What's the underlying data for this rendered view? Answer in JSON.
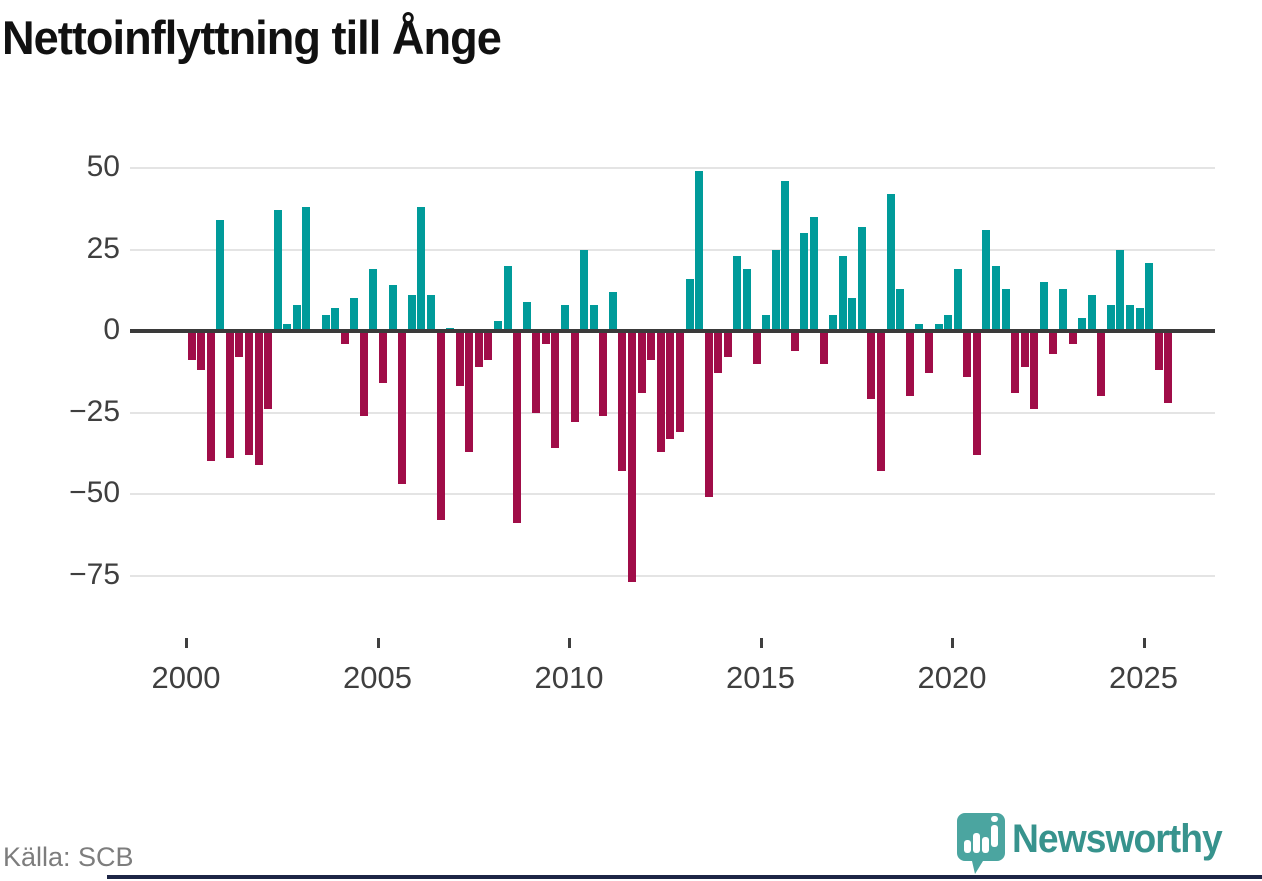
{
  "title": "Nettoinflyttning till Ånge",
  "source": "Källa: SCB",
  "branding": {
    "wordmark": "Newsworthy"
  },
  "colors": {
    "positive": "#009b9a",
    "negative": "#a00d48",
    "grid": "#e4e4e4",
    "zero_line": "#3a3a3a",
    "axis_text": "#3f3f3f",
    "title_text": "#111111",
    "source_text": "#7d7d7d",
    "logo_icon": "#4ba5a0",
    "logo_text": "#37938d",
    "footer_bar": "#1d2545"
  },
  "chart_data": {
    "type": "bar",
    "title": "Nettoinflyttning till Ånge",
    "x_unit": "quarter",
    "ylim": [
      -85,
      55
    ],
    "yticks": [
      50,
      25,
      0,
      -25,
      -50,
      -75
    ],
    "ytick_labels": [
      "50",
      "25",
      "0",
      "−25",
      "−50",
      "−75"
    ],
    "xticks": [
      "2000",
      "2005",
      "2010",
      "2015",
      "2020",
      "2025"
    ],
    "grid": true,
    "legend": "none",
    "categories": [
      "2000Q1",
      "2000Q2",
      "2000Q3",
      "2000Q4",
      "2001Q1",
      "2001Q2",
      "2001Q3",
      "2001Q4",
      "2002Q1",
      "2002Q2",
      "2002Q3",
      "2002Q4",
      "2003Q1",
      "2003Q2",
      "2003Q3",
      "2003Q4",
      "2004Q1",
      "2004Q2",
      "2004Q3",
      "2004Q4",
      "2005Q1",
      "2005Q2",
      "2005Q3",
      "2005Q4",
      "2006Q1",
      "2006Q2",
      "2006Q3",
      "2006Q4",
      "2007Q1",
      "2007Q2",
      "2007Q3",
      "2007Q4",
      "2008Q1",
      "2008Q2",
      "2008Q3",
      "2008Q4",
      "2009Q1",
      "2009Q2",
      "2009Q3",
      "2009Q4",
      "2010Q1",
      "2010Q2",
      "2010Q3",
      "2010Q4",
      "2011Q1",
      "2011Q2",
      "2011Q3",
      "2011Q4",
      "2012Q1",
      "2012Q2",
      "2012Q3",
      "2012Q4",
      "2013Q1",
      "2013Q2",
      "2013Q3",
      "2013Q4",
      "2014Q1",
      "2014Q2",
      "2014Q3",
      "2014Q4",
      "2015Q1",
      "2015Q2",
      "2015Q3",
      "2015Q4",
      "2016Q1",
      "2016Q2",
      "2016Q3",
      "2016Q4",
      "2017Q1",
      "2017Q2",
      "2017Q3",
      "2017Q4",
      "2018Q1",
      "2018Q2",
      "2018Q3",
      "2018Q4",
      "2019Q1",
      "2019Q2",
      "2019Q3",
      "2019Q4",
      "2020Q1",
      "2020Q2",
      "2020Q3",
      "2020Q4",
      "2021Q1",
      "2021Q2",
      "2021Q3",
      "2021Q4",
      "2022Q1",
      "2022Q2",
      "2022Q3",
      "2022Q4",
      "2023Q1",
      "2023Q2",
      "2023Q3",
      "2023Q4",
      "2024Q1",
      "2024Q2",
      "2024Q3",
      "2024Q4",
      "2025Q1",
      "2025Q2",
      "2025Q3"
    ],
    "values": [
      -9,
      -12,
      -40,
      34,
      -39,
      -8,
      -38,
      -41,
      -24,
      37,
      2,
      8,
      38,
      0,
      5,
      7,
      -4,
      10,
      -26,
      19,
      -16,
      14,
      -47,
      11,
      38,
      11,
      -58,
      1,
      -17,
      -37,
      -11,
      -9,
      3,
      20,
      -59,
      9,
      -25,
      -4,
      -36,
      8,
      -28,
      25,
      8,
      -26,
      12,
      -43,
      -77,
      -19,
      -9,
      -37,
      -33,
      -31,
      16,
      49,
      -51,
      -13,
      -8,
      23,
      19,
      -10,
      5,
      25,
      46,
      -6,
      30,
      35,
      -10,
      5,
      23,
      10,
      32,
      -21,
      -43,
      42,
      13,
      -20,
      2,
      -13,
      2,
      5,
      19,
      -14,
      -38,
      31,
      20,
      13,
      -19,
      -11,
      -24,
      15,
      -7,
      13,
      -4,
      4,
      11,
      -20,
      8,
      25,
      8,
      7,
      21,
      -12,
      -22
    ]
  }
}
